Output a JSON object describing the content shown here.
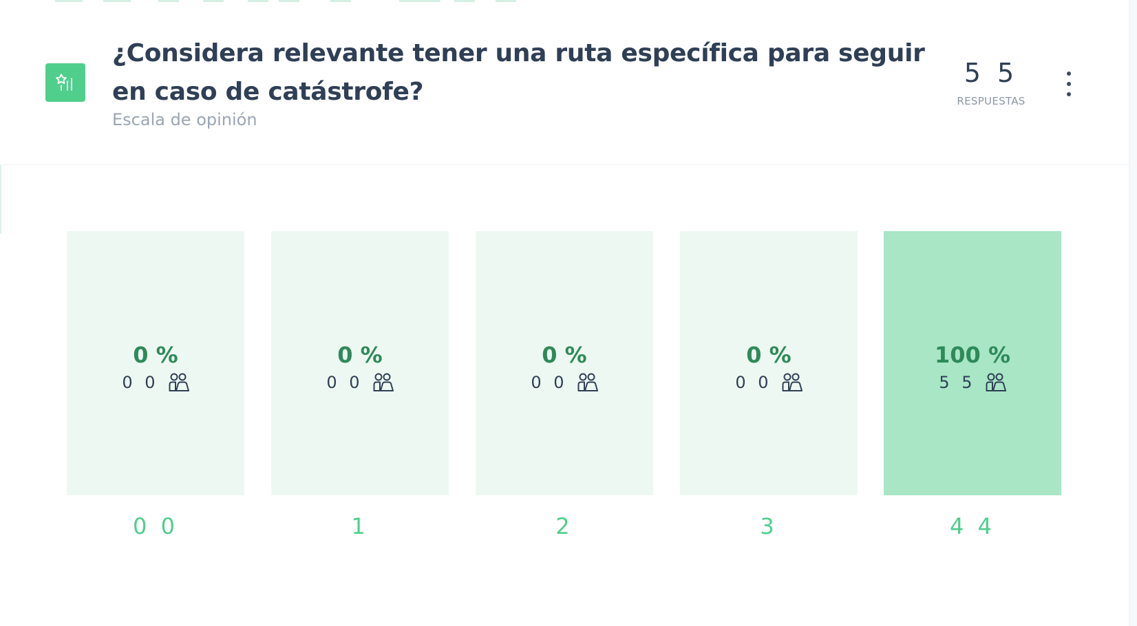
{
  "question": {
    "title": "¿Considera relevante tener una ruta específica para seguir en caso de catástrofe?",
    "type_label": "Escala de opinión",
    "icon": "opinion-scale-icon"
  },
  "responses": {
    "value": "5 5",
    "label": "RESPUESTAS"
  },
  "menu": {
    "icon": "more-options-icon"
  },
  "scale": {
    "accent_color": "#4fce8c",
    "bar_color": "#eef8f2",
    "highlight_color": "#a8e6c5",
    "options": [
      {
        "label": "0 0",
        "percent": "0 %",
        "votes": "0 0",
        "icon": "people-icon"
      },
      {
        "label": "1",
        "percent": "0 %",
        "votes": "0 0",
        "icon": "people-icon"
      },
      {
        "label": "2",
        "percent": "0 %",
        "votes": "0 0",
        "icon": "people-icon"
      },
      {
        "label": "3",
        "percent": "0 %",
        "votes": "0 0",
        "icon": "people-icon"
      },
      {
        "label": "4 4",
        "percent": "100 %",
        "votes": "5 5",
        "icon": "people-icon"
      }
    ]
  }
}
